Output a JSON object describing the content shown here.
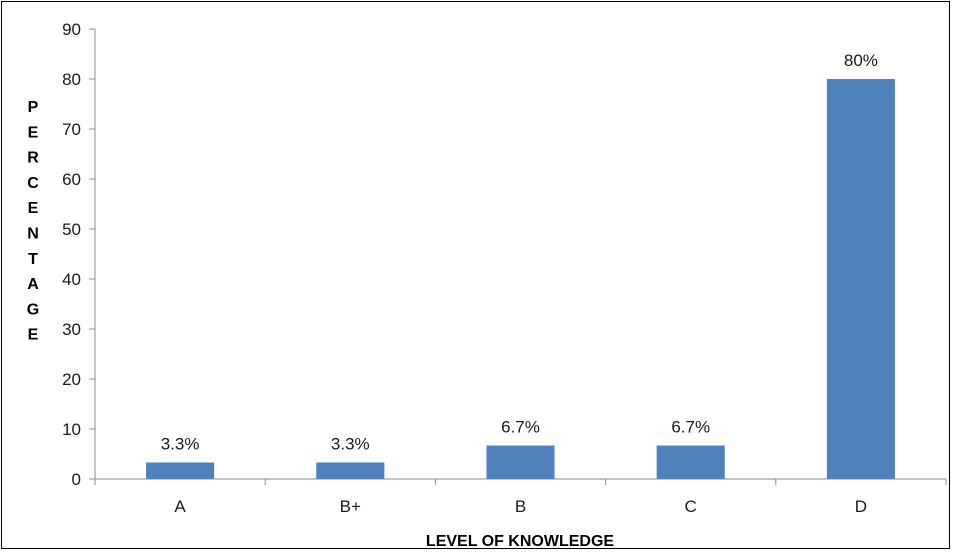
{
  "chart_data": {
    "type": "bar",
    "title": "",
    "xlabel": "LEVEL OF KNOWLEDGE",
    "ylabel": "PERCENTAGE",
    "categories": [
      "A",
      "B+",
      "B",
      "C",
      "D"
    ],
    "values": [
      3.3,
      3.3,
      6.7,
      6.7,
      80
    ],
    "data_labels": [
      "3.3%",
      "3.3%",
      "6.7%",
      "6.7%",
      "80%"
    ],
    "ylim": [
      0,
      90
    ],
    "yticks": [
      0,
      10,
      20,
      30,
      40,
      50,
      60,
      70,
      80,
      90
    ],
    "grid": false,
    "legend": "none",
    "bar_color": "#4F81BD"
  }
}
